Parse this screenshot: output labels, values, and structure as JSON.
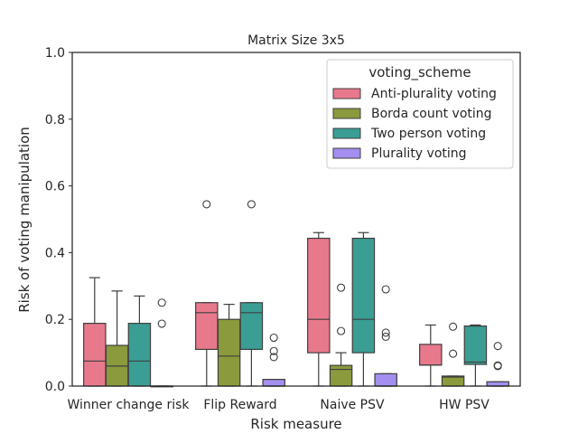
{
  "chart_data": {
    "type": "box",
    "title": "Matrix Size 3x5",
    "xlabel": "Risk measure",
    "ylabel": "Risk of voting manipulation",
    "ylim": [
      0.0,
      1.0
    ],
    "yticks": [
      "0.0",
      "0.2",
      "0.4",
      "0.6",
      "0.8",
      "1.0"
    ],
    "categories": [
      "Winner change risk",
      "Flip Reward",
      "Naive PSV",
      "HW PSV"
    ],
    "grid": false,
    "legend": {
      "title": "voting_scheme",
      "position": "top-right"
    },
    "series": [
      {
        "name": "Anti-plurality voting",
        "color": "#e8798c",
        "boxes": [
          {
            "whisker_low": 0.0,
            "q1": 0.0,
            "median": 0.075,
            "q3": 0.188,
            "whisker_high": 0.325,
            "outliers": []
          },
          {
            "whisker_low": 0.0,
            "q1": 0.11,
            "median": 0.22,
            "q3": 0.25,
            "whisker_high": 0.25,
            "outliers": [
              0.545
            ]
          },
          {
            "whisker_low": 0.0,
            "q1": 0.1,
            "median": 0.2,
            "q3": 0.443,
            "whisker_high": 0.46,
            "outliers": []
          },
          {
            "whisker_low": 0.0,
            "q1": 0.063,
            "median": 0.063,
            "q3": 0.125,
            "whisker_high": 0.183,
            "outliers": []
          }
        ]
      },
      {
        "name": "Borda count voting",
        "color": "#8a9a3c",
        "boxes": [
          {
            "whisker_low": 0.0,
            "q1": 0.0,
            "median": 0.06,
            "q3": 0.122,
            "whisker_high": 0.285,
            "outliers": []
          },
          {
            "whisker_low": 0.0,
            "q1": 0.0,
            "median": 0.09,
            "q3": 0.2,
            "whisker_high": 0.245,
            "outliers": []
          },
          {
            "whisker_low": 0.0,
            "q1": 0.0,
            "median": 0.05,
            "q3": 0.062,
            "whisker_high": 0.1,
            "outliers": [
              0.295,
              0.165
            ]
          },
          {
            "whisker_low": 0.0,
            "q1": 0.0,
            "median": 0.027,
            "q3": 0.03,
            "whisker_high": 0.03,
            "outliers": [
              0.178,
              0.097
            ]
          }
        ]
      },
      {
        "name": "Two person voting",
        "color": "#3a9e94",
        "boxes": [
          {
            "whisker_low": 0.0,
            "q1": 0.0,
            "median": 0.075,
            "q3": 0.188,
            "whisker_high": 0.27,
            "outliers": []
          },
          {
            "whisker_low": 0.0,
            "q1": 0.11,
            "median": 0.22,
            "q3": 0.25,
            "whisker_high": 0.25,
            "outliers": [
              0.545
            ]
          },
          {
            "whisker_low": 0.0,
            "q1": 0.1,
            "median": 0.2,
            "q3": 0.443,
            "whisker_high": 0.46,
            "outliers": []
          },
          {
            "whisker_low": 0.0,
            "q1": 0.065,
            "median": 0.072,
            "q3": 0.18,
            "whisker_high": 0.183,
            "outliers": []
          }
        ]
      },
      {
        "name": "Plurality voting",
        "color": "#a48ff0",
        "boxes": [
          {
            "whisker_low": 0.0,
            "q1": 0.0,
            "median": 0.0,
            "q3": 0.0,
            "whisker_high": 0.0,
            "outliers": [
              0.25,
              0.187
            ]
          },
          {
            "whisker_low": 0.0,
            "q1": 0.0,
            "median": 0.0,
            "q3": 0.02,
            "whisker_high": 0.02,
            "outliers": [
              0.145,
              0.105,
              0.087
            ]
          },
          {
            "whisker_low": 0.0,
            "q1": 0.0,
            "median": 0.0,
            "q3": 0.037,
            "whisker_high": 0.037,
            "outliers": [
              0.29,
              0.16,
              0.148
            ]
          },
          {
            "whisker_low": 0.0,
            "q1": 0.0,
            "median": 0.0,
            "q3": 0.013,
            "whisker_high": 0.013,
            "outliers": [
              0.12,
              0.062,
              0.06
            ]
          }
        ]
      }
    ]
  }
}
